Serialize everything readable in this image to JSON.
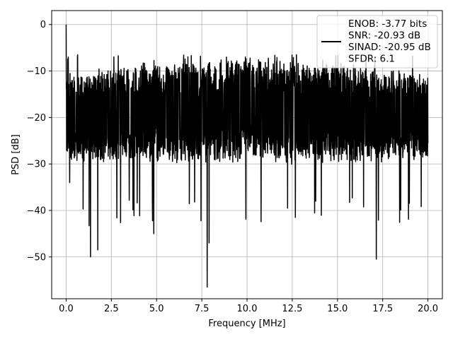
{
  "chart_data": {
    "type": "line",
    "xlabel": "Frequency [MHz]",
    "ylabel": "PSD [dB]",
    "xlim": [
      -0.8,
      20.8
    ],
    "ylim": [
      -59,
      3
    ],
    "xticks": [
      0.0,
      2.5,
      5.0,
      7.5,
      10.0,
      12.5,
      15.0,
      17.5,
      20.0
    ],
    "xtick_labels": [
      "0.0",
      "2.5",
      "5.0",
      "7.5",
      "10.0",
      "12.5",
      "15.0",
      "17.5",
      "20.0"
    ],
    "yticks": [
      0,
      -10,
      -20,
      -30,
      -40,
      -50
    ],
    "ytick_labels": [
      "0",
      "−10",
      "−20",
      "−30",
      "−40",
      "−50"
    ],
    "grid": true,
    "line_color": "#000000",
    "legend": {
      "placement": "top-right",
      "lines": [
        "ENOB: -3.77 bits",
        "SNR: -20.93 dB",
        "SINAD: -20.95 dB",
        "SFDR: 6.1"
      ]
    },
    "series": [
      {
        "x": [
          0.0,
          0.06,
          0.12,
          0.2,
          1.35,
          1.75,
          4.85,
          7.8,
          7.9,
          17.15
        ],
        "y": [
          0.0,
          -22.0,
          -7.0,
          -34.0,
          -50.0,
          -48.5,
          -45.0,
          -56.5,
          -47.0,
          -50.5
        ],
        "points": 2048
      }
    ]
  }
}
